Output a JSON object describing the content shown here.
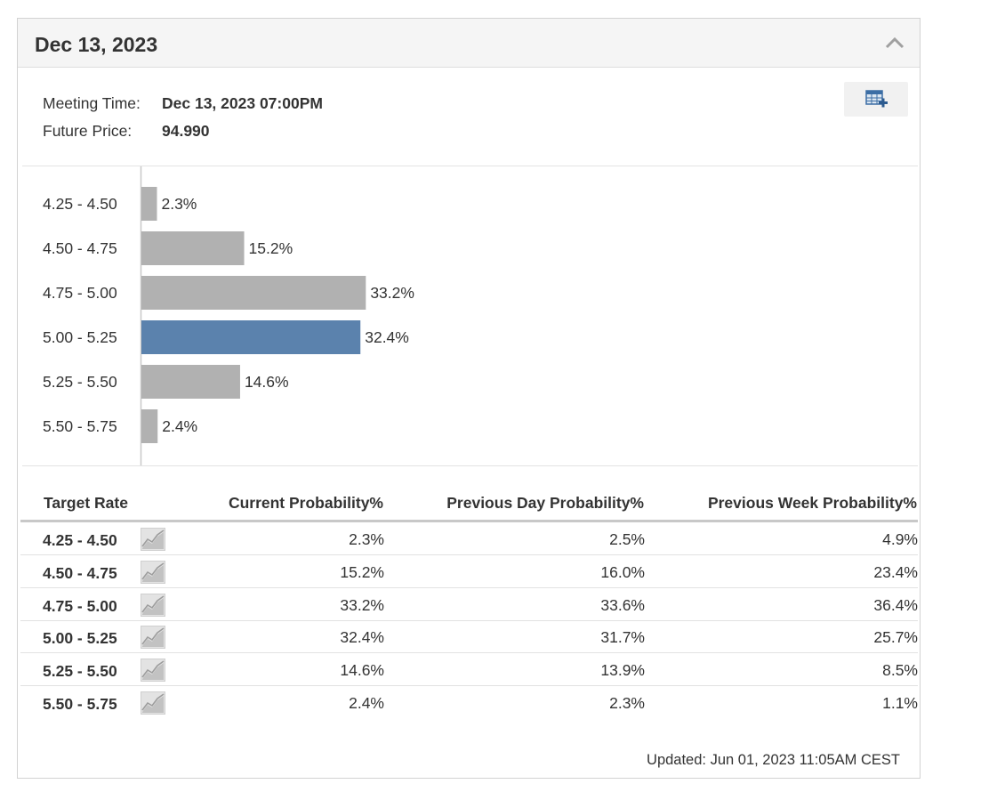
{
  "header": {
    "title": "Dec 13, 2023"
  },
  "meeting": {
    "meeting_time_label": "Meeting Time:",
    "meeting_time_value": "Dec 13, 2023 07:00PM",
    "future_price_label": "Future Price:",
    "future_price_value": "94.990"
  },
  "icons": {
    "collapse": "chevron-up-icon",
    "export": "table-add-icon",
    "trend": "line-chart-icon"
  },
  "colors": {
    "bar": "#b1b1b1",
    "highlight_bar": "#5b82ad"
  },
  "chart_data": {
    "type": "bar",
    "orientation": "horizontal",
    "categories": [
      "4.25 - 4.50",
      "4.50 - 4.75",
      "4.75 - 5.00",
      "5.00 - 5.25",
      "5.25 - 5.50",
      "5.50 - 5.75"
    ],
    "values": [
      2.3,
      15.2,
      33.2,
      32.4,
      14.6,
      2.4
    ],
    "value_labels": [
      "2.3%",
      "15.2%",
      "33.2%",
      "32.4%",
      "14.6%",
      "2.4%"
    ],
    "highlight_index": 3,
    "title": "",
    "xlabel": "",
    "ylabel": "",
    "xlim": [
      0,
      100
    ],
    "grid": false,
    "legend": "none"
  },
  "table": {
    "headers": [
      "Target Rate",
      "Current Probability%",
      "Previous Day Probability%",
      "Previous Week Probability%"
    ],
    "rows": [
      {
        "rate": "4.25 - 4.50",
        "current": "2.3%",
        "prev_day": "2.5%",
        "prev_week": "4.9%"
      },
      {
        "rate": "4.50 - 4.75",
        "current": "15.2%",
        "prev_day": "16.0%",
        "prev_week": "23.4%"
      },
      {
        "rate": "4.75 - 5.00",
        "current": "33.2%",
        "prev_day": "33.6%",
        "prev_week": "36.4%"
      },
      {
        "rate": "5.00 - 5.25",
        "current": "32.4%",
        "prev_day": "31.7%",
        "prev_week": "25.7%"
      },
      {
        "rate": "5.25 - 5.50",
        "current": "14.6%",
        "prev_day": "13.9%",
        "prev_week": "8.5%"
      },
      {
        "rate": "5.50 - 5.75",
        "current": "2.4%",
        "prev_day": "2.3%",
        "prev_week": "1.1%"
      }
    ]
  },
  "footer": {
    "updated": "Updated: Jun 01, 2023 11:05AM CEST"
  }
}
